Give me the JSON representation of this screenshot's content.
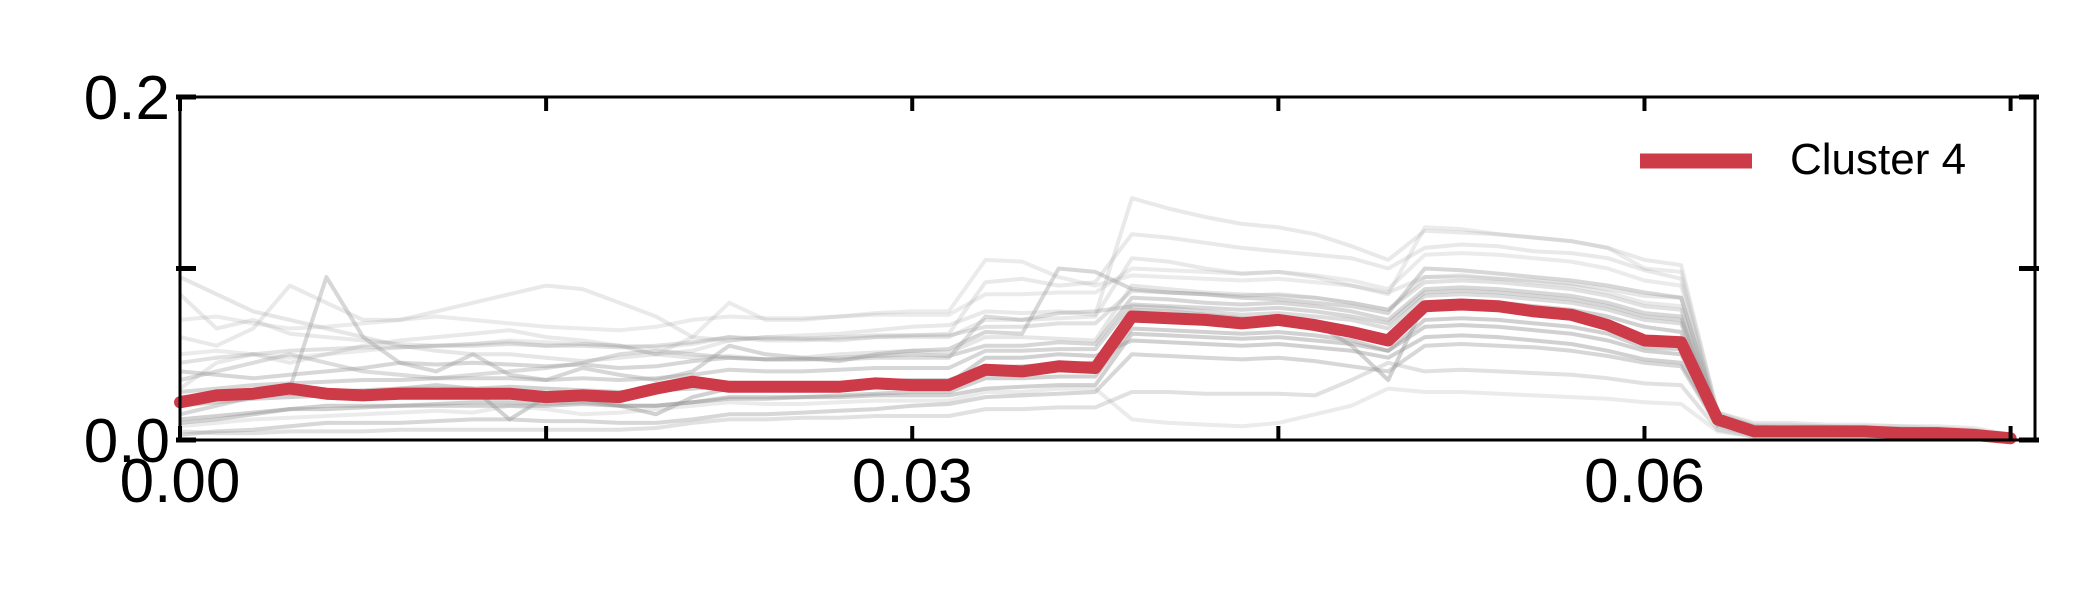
{
  "chart_data": {
    "type": "line",
    "title": "",
    "xlabel": "",
    "ylabel": "",
    "xlim": [
      0.0,
      0.076
    ],
    "ylim": [
      0.0,
      0.2
    ],
    "x_ticks": [
      {
        "value": 0.0,
        "label": "0.00"
      },
      {
        "value": 0.015,
        "label": ""
      },
      {
        "value": 0.03,
        "label": "0.03"
      },
      {
        "value": 0.045,
        "label": ""
      },
      {
        "value": 0.06,
        "label": "0.06"
      },
      {
        "value": 0.075,
        "label": ""
      }
    ],
    "y_ticks": [
      {
        "value": 0.0,
        "label": "0.0"
      },
      {
        "value": 0.1,
        "label": ""
      },
      {
        "value": 0.2,
        "label": "0.2"
      }
    ],
    "grid": false,
    "legend": {
      "position": "top-right",
      "entries": [
        "Cluster 4"
      ]
    },
    "x": [
      0.0,
      0.0015,
      0.003,
      0.0045,
      0.006,
      0.0075,
      0.009,
      0.0105,
      0.012,
      0.0135,
      0.015,
      0.0165,
      0.018,
      0.0195,
      0.021,
      0.0225,
      0.024,
      0.0255,
      0.027,
      0.0285,
      0.03,
      0.0315,
      0.033,
      0.0345,
      0.036,
      0.0375,
      0.039,
      0.0405,
      0.042,
      0.0435,
      0.045,
      0.0465,
      0.048,
      0.0495,
      0.051,
      0.0525,
      0.054,
      0.0555,
      0.057,
      0.0585,
      0.06,
      0.0615,
      0.063,
      0.0645,
      0.066,
      0.0675,
      0.069,
      0.0705,
      0.072,
      0.0735,
      0.075
    ],
    "highlight": {
      "name": "Cluster 4",
      "color": "#cd3a48",
      "values": [
        0.022,
        0.026,
        0.027,
        0.03,
        0.027,
        0.026,
        0.027,
        0.027,
        0.027,
        0.027,
        0.025,
        0.026,
        0.025,
        0.03,
        0.034,
        0.031,
        0.031,
        0.031,
        0.031,
        0.033,
        0.032,
        0.032,
        0.041,
        0.04,
        0.043,
        0.042,
        0.072,
        0.071,
        0.07,
        0.068,
        0.07,
        0.067,
        0.063,
        0.058,
        0.078,
        0.079,
        0.078,
        0.075,
        0.073,
        0.067,
        0.058,
        0.057,
        0.012,
        0.005,
        0.005,
        0.005,
        0.005,
        0.004,
        0.004,
        0.003,
        0.001
      ]
    },
    "background_color": "#9a9a9a",
    "background_series": [
      {
        "values": [
          0.095,
          0.085,
          0.075,
          0.07,
          0.065,
          0.06,
          0.055,
          0.052,
          0.05,
          0.05,
          0.048,
          0.046,
          0.048,
          0.05,
          0.048,
          0.049,
          0.047,
          0.048,
          0.05,
          0.051,
          0.052,
          0.051,
          0.06,
          0.06,
          0.059,
          0.058,
          0.09,
          0.088,
          0.086,
          0.085,
          0.084,
          0.083,
          0.08,
          0.076,
          0.095,
          0.096,
          0.094,
          0.093,
          0.091,
          0.088,
          0.084,
          0.083,
          0.015,
          0.008,
          0.007,
          0.007,
          0.006,
          0.006,
          0.005,
          0.004,
          0.002
        ],
        "opacity": 0.25
      },
      {
        "values": [
          0.06,
          0.055,
          0.065,
          0.09,
          0.08,
          0.07,
          0.07,
          0.075,
          0.08,
          0.085,
          0.09,
          0.088,
          0.08,
          0.072,
          0.06,
          0.058,
          0.06,
          0.061,
          0.062,
          0.064,
          0.066,
          0.067,
          0.075,
          0.074,
          0.075,
          0.073,
          0.141,
          0.135,
          0.13,
          0.126,
          0.124,
          0.12,
          0.113,
          0.105,
          0.122,
          0.121,
          0.12,
          0.118,
          0.116,
          0.112,
          0.105,
          0.102,
          0.016,
          0.01,
          0.01,
          0.009,
          0.009,
          0.008,
          0.008,
          0.007,
          0.003
        ],
        "opacity": 0.22
      },
      {
        "values": [
          0.03,
          0.045,
          0.05,
          0.045,
          0.05,
          0.055,
          0.058,
          0.06,
          0.062,
          0.064,
          0.06,
          0.058,
          0.055,
          0.05,
          0.052,
          0.058,
          0.06,
          0.059,
          0.058,
          0.06,
          0.061,
          0.062,
          0.092,
          0.094,
          0.09,
          0.092,
          0.12,
          0.118,
          0.115,
          0.112,
          0.11,
          0.108,
          0.106,
          0.1,
          0.112,
          0.114,
          0.113,
          0.11,
          0.109,
          0.106,
          0.099,
          0.094,
          0.014,
          0.008,
          0.008,
          0.008,
          0.007,
          0.007,
          0.006,
          0.005,
          0.002
        ],
        "opacity": 0.22
      },
      {
        "values": [
          0.015,
          0.02,
          0.025,
          0.03,
          0.095,
          0.06,
          0.045,
          0.04,
          0.05,
          0.038,
          0.035,
          0.042,
          0.038,
          0.035,
          0.04,
          0.055,
          0.05,
          0.048,
          0.046,
          0.05,
          0.052,
          0.053,
          0.063,
          0.062,
          0.1,
          0.098,
          0.088,
          0.086,
          0.085,
          0.083,
          0.082,
          0.08,
          0.078,
          0.074,
          0.1,
          0.099,
          0.097,
          0.095,
          0.093,
          0.09,
          0.086,
          0.083,
          0.013,
          0.007,
          0.007,
          0.006,
          0.006,
          0.006,
          0.005,
          0.004,
          0.002
        ],
        "opacity": 0.4
      },
      {
        "values": [
          0.01,
          0.012,
          0.015,
          0.018,
          0.02,
          0.02,
          0.02,
          0.021,
          0.022,
          0.022,
          0.021,
          0.022,
          0.02,
          0.02,
          0.022,
          0.025,
          0.025,
          0.025,
          0.026,
          0.027,
          0.028,
          0.028,
          0.036,
          0.036,
          0.037,
          0.037,
          0.065,
          0.064,
          0.063,
          0.062,
          0.063,
          0.061,
          0.058,
          0.052,
          0.07,
          0.071,
          0.07,
          0.068,
          0.066,
          0.062,
          0.054,
          0.053,
          0.01,
          0.004,
          0.004,
          0.004,
          0.004,
          0.003,
          0.003,
          0.003,
          0.001
        ],
        "opacity": 0.45
      },
      {
        "values": [
          0.04,
          0.038,
          0.036,
          0.038,
          0.04,
          0.042,
          0.045,
          0.044,
          0.045,
          0.044,
          0.043,
          0.044,
          0.042,
          0.043,
          0.046,
          0.048,
          0.047,
          0.047,
          0.048,
          0.049,
          0.05,
          0.049,
          0.055,
          0.055,
          0.057,
          0.056,
          0.083,
          0.082,
          0.08,
          0.079,
          0.08,
          0.078,
          0.075,
          0.07,
          0.088,
          0.089,
          0.088,
          0.086,
          0.084,
          0.08,
          0.074,
          0.072,
          0.012,
          0.006,
          0.006,
          0.006,
          0.005,
          0.005,
          0.005,
          0.004,
          0.001
        ],
        "opacity": 0.4
      },
      {
        "values": [
          0.003,
          0.005,
          0.006,
          0.008,
          0.01,
          0.01,
          0.01,
          0.011,
          0.012,
          0.012,
          0.011,
          0.011,
          0.01,
          0.01,
          0.012,
          0.015,
          0.015,
          0.016,
          0.017,
          0.018,
          0.02,
          0.021,
          0.025,
          0.026,
          0.027,
          0.028,
          0.05,
          0.049,
          0.048,
          0.047,
          0.048,
          0.046,
          0.043,
          0.04,
          0.055,
          0.056,
          0.055,
          0.054,
          0.052,
          0.049,
          0.045,
          0.043,
          0.008,
          0.003,
          0.003,
          0.003,
          0.003,
          0.002,
          0.002,
          0.002,
          0.001
        ],
        "opacity": 0.4
      },
      {
        "values": [
          0.02,
          0.022,
          0.024,
          0.025,
          0.026,
          0.028,
          0.03,
          0.032,
          0.03,
          0.012,
          0.025,
          0.024,
          0.02,
          0.015,
          0.025,
          0.03,
          0.031,
          0.032,
          0.033,
          0.034,
          0.035,
          0.035,
          0.042,
          0.043,
          0.044,
          0.045,
          0.076,
          0.075,
          0.073,
          0.071,
          0.07,
          0.068,
          0.055,
          0.035,
          0.08,
          0.081,
          0.08,
          0.078,
          0.076,
          0.072,
          0.066,
          0.063,
          0.011,
          0.005,
          0.005,
          0.005,
          0.005,
          0.004,
          0.004,
          0.004,
          0.001
        ],
        "opacity": 0.45
      },
      {
        "values": [
          0.085,
          0.065,
          0.07,
          0.062,
          0.06,
          0.058,
          0.056,
          0.055,
          0.056,
          0.057,
          0.055,
          0.056,
          0.055,
          0.054,
          0.056,
          0.06,
          0.058,
          0.058,
          0.059,
          0.06,
          0.06,
          0.06,
          0.07,
          0.07,
          0.071,
          0.072,
          0.106,
          0.104,
          0.1,
          0.097,
          0.098,
          0.095,
          0.09,
          0.086,
          0.095,
          0.095,
          0.094,
          0.092,
          0.09,
          0.086,
          0.08,
          0.078,
          0.013,
          0.007,
          0.007,
          0.007,
          0.006,
          0.006,
          0.006,
          0.005,
          0.002
        ],
        "opacity": 0.22
      },
      {
        "values": [
          0.05,
          0.052,
          0.05,
          0.048,
          0.05,
          0.052,
          0.054,
          0.055,
          0.056,
          0.058,
          0.057,
          0.056,
          0.055,
          0.05,
          0.06,
          0.08,
          0.07,
          0.07,
          0.072,
          0.074,
          0.075,
          0.075,
          0.105,
          0.104,
          0.095,
          0.09,
          0.096,
          0.095,
          0.094,
          0.093,
          0.094,
          0.092,
          0.09,
          0.085,
          0.124,
          0.123,
          0.12,
          0.118,
          0.116,
          0.112,
          0.1,
          0.098,
          0.016,
          0.009,
          0.009,
          0.008,
          0.008,
          0.008,
          0.007,
          0.006,
          0.002
        ],
        "opacity": 0.2
      },
      {
        "values": [
          0.025,
          0.026,
          0.028,
          0.027,
          0.028,
          0.029,
          0.03,
          0.03,
          0.03,
          0.031,
          0.03,
          0.029,
          0.028,
          0.029,
          0.03,
          0.032,
          0.031,
          0.031,
          0.032,
          0.033,
          0.033,
          0.033,
          0.048,
          0.048,
          0.05,
          0.049,
          0.058,
          0.057,
          0.056,
          0.055,
          0.056,
          0.054,
          0.052,
          0.048,
          0.06,
          0.061,
          0.06,
          0.058,
          0.056,
          0.052,
          0.047,
          0.045,
          0.009,
          0.004,
          0.004,
          0.004,
          0.003,
          0.003,
          0.003,
          0.003,
          0.001
        ],
        "opacity": 0.45
      },
      {
        "values": [
          0.005,
          0.004,
          0.004,
          0.005,
          0.005,
          0.005,
          0.006,
          0.006,
          0.006,
          0.006,
          0.006,
          0.006,
          0.006,
          0.007,
          0.01,
          0.012,
          0.012,
          0.013,
          0.013,
          0.014,
          0.014,
          0.014,
          0.018,
          0.018,
          0.019,
          0.019,
          0.028,
          0.028,
          0.027,
          0.027,
          0.027,
          0.026,
          0.035,
          0.045,
          0.04,
          0.041,
          0.04,
          0.039,
          0.038,
          0.036,
          0.033,
          0.032,
          0.006,
          0.002,
          0.002,
          0.002,
          0.002,
          0.002,
          0.002,
          0.002,
          0.001
        ],
        "opacity": 0.3
      },
      {
        "values": [
          0.035,
          0.04,
          0.045,
          0.05,
          0.045,
          0.04,
          0.038,
          0.036,
          0.038,
          0.04,
          0.042,
          0.045,
          0.05,
          0.052,
          0.05,
          0.048,
          0.047,
          0.047,
          0.047,
          0.048,
          0.048,
          0.048,
          0.072,
          0.07,
          0.074,
          0.075,
          0.078,
          0.077,
          0.075,
          0.073,
          0.074,
          0.072,
          0.07,
          0.065,
          0.084,
          0.085,
          0.084,
          0.082,
          0.08,
          0.076,
          0.07,
          0.068,
          0.012,
          0.006,
          0.006,
          0.006,
          0.005,
          0.005,
          0.005,
          0.004,
          0.001
        ],
        "opacity": 0.35
      },
      {
        "values": [
          0.012,
          0.014,
          0.016,
          0.018,
          0.018,
          0.019,
          0.02,
          0.02,
          0.02,
          0.02,
          0.02,
          0.021,
          0.02,
          0.02,
          0.022,
          0.024,
          0.024,
          0.025,
          0.025,
          0.026,
          0.026,
          0.026,
          0.03,
          0.031,
          0.032,
          0.032,
          0.062,
          0.061,
          0.06,
          0.059,
          0.06,
          0.058,
          0.056,
          0.052,
          0.066,
          0.067,
          0.066,
          0.064,
          0.062,
          0.058,
          0.052,
          0.05,
          0.009,
          0.004,
          0.004,
          0.004,
          0.004,
          0.003,
          0.003,
          0.003,
          0.001
        ],
        "opacity": 0.45
      },
      {
        "values": [
          0.045,
          0.048,
          0.05,
          0.052,
          0.053,
          0.054,
          0.054,
          0.055,
          0.055,
          0.056,
          0.055,
          0.055,
          0.054,
          0.055,
          0.057,
          0.06,
          0.059,
          0.059,
          0.06,
          0.061,
          0.061,
          0.061,
          0.066,
          0.066,
          0.068,
          0.068,
          0.087,
          0.086,
          0.085,
          0.084,
          0.085,
          0.083,
          0.08,
          0.076,
          0.092,
          0.093,
          0.092,
          0.09,
          0.088,
          0.084,
          0.078,
          0.076,
          0.012,
          0.006,
          0.006,
          0.006,
          0.006,
          0.005,
          0.005,
          0.004,
          0.001
        ],
        "opacity": 0.3
      },
      {
        "values": [
          0.008,
          0.01,
          0.012,
          0.013,
          0.014,
          0.015,
          0.016,
          0.017,
          0.016,
          0.02,
          0.018,
          0.015,
          0.016,
          0.018,
          0.02,
          0.022,
          0.021,
          0.021,
          0.022,
          0.023,
          0.023,
          0.023,
          0.028,
          0.028,
          0.03,
          0.03,
          0.012,
          0.01,
          0.009,
          0.008,
          0.01,
          0.015,
          0.02,
          0.03,
          0.028,
          0.028,
          0.027,
          0.026,
          0.025,
          0.024,
          0.022,
          0.021,
          0.005,
          0.002,
          0.002,
          0.002,
          0.002,
          0.002,
          0.002,
          0.002,
          0.001
        ],
        "opacity": 0.2
      },
      {
        "values": [
          0.028,
          0.03,
          0.032,
          0.033,
          0.034,
          0.035,
          0.035,
          0.036,
          0.036,
          0.036,
          0.035,
          0.036,
          0.035,
          0.036,
          0.038,
          0.041,
          0.04,
          0.04,
          0.041,
          0.042,
          0.042,
          0.042,
          0.052,
          0.052,
          0.053,
          0.053,
          0.079,
          0.078,
          0.077,
          0.076,
          0.077,
          0.075,
          0.072,
          0.068,
          0.086,
          0.087,
          0.086,
          0.084,
          0.082,
          0.078,
          0.072,
          0.07,
          0.011,
          0.005,
          0.005,
          0.005,
          0.005,
          0.004,
          0.004,
          0.004,
          0.001
        ],
        "opacity": 0.4
      },
      {
        "values": [
          0.07,
          0.072,
          0.068,
          0.065,
          0.066,
          0.068,
          0.07,
          0.072,
          0.07,
          0.068,
          0.066,
          0.065,
          0.064,
          0.066,
          0.07,
          0.072,
          0.071,
          0.071,
          0.072,
          0.073,
          0.073,
          0.073,
          0.085,
          0.085,
          0.086,
          0.086,
          0.1,
          0.099,
          0.098,
          0.097,
          0.098,
          0.096,
          0.093,
          0.088,
          0.108,
          0.109,
          0.108,
          0.106,
          0.104,
          0.1,
          0.093,
          0.09,
          0.014,
          0.007,
          0.007,
          0.007,
          0.007,
          0.006,
          0.006,
          0.005,
          0.002
        ],
        "opacity": 0.2
      }
    ]
  }
}
